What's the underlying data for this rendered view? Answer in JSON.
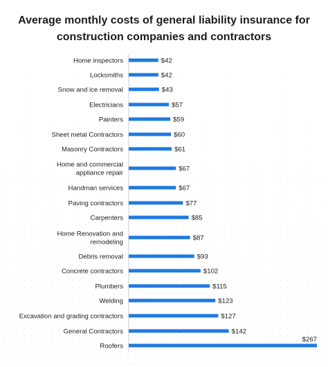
{
  "chart_data": {
    "type": "bar",
    "orientation": "horizontal",
    "title": "Average monthly costs of general liability insurance for construction companies and contractors",
    "color": "#1f7ae0",
    "value_prefix": "$",
    "categories": [
      "Home inspectors",
      "Locksmiths",
      "Snow and ice removal",
      "Electricians",
      "Painters",
      "Sheet metal Contractors",
      "Masonry Contractors",
      "Home and commercial appliance repair",
      "Handman services",
      "Paving contractors",
      "Carpenters",
      "Home Renovation and remodeling",
      "Debris removal",
      "Concrete contractors",
      "Plumbers",
      "Welding",
      "Excavation and grading contractors",
      "General Contractors",
      "Roofers"
    ],
    "labels_wrapped": [
      [
        "Home inspectors"
      ],
      [
        "Locksmiths"
      ],
      [
        "Snow and ice removal"
      ],
      [
        "Electricians"
      ],
      [
        "Painters"
      ],
      [
        "Sheet metal Contractors"
      ],
      [
        "Masonry Contractors"
      ],
      [
        "Home and commercial",
        "appliance repair"
      ],
      [
        "Handman services"
      ],
      [
        "Paving contractors"
      ],
      [
        "Carpenters"
      ],
      [
        "Home Renovation and",
        "remodeling"
      ],
      [
        "Debris removal"
      ],
      [
        "Concrete contractors"
      ],
      [
        "Plumbers"
      ],
      [
        "Welding"
      ],
      [
        "Excavation and grading contractors"
      ],
      [
        "General Contractors"
      ],
      [
        "Roofers"
      ]
    ],
    "values": [
      42,
      42,
      43,
      57,
      59,
      60,
      61,
      67,
      67,
      77,
      85,
      87,
      93,
      102,
      115,
      123,
      127,
      142,
      267
    ],
    "value_labels": [
      "$42",
      "$42",
      "$43",
      "$57",
      "$59",
      "$60",
      "$61",
      "$67",
      "$67",
      "$77",
      "$85",
      "$87",
      "$93",
      "$102",
      "$115",
      "$123",
      "$127",
      "$142",
      "$267"
    ],
    "xlim": [
      0,
      267
    ],
    "grid": false,
    "legend": "none"
  }
}
